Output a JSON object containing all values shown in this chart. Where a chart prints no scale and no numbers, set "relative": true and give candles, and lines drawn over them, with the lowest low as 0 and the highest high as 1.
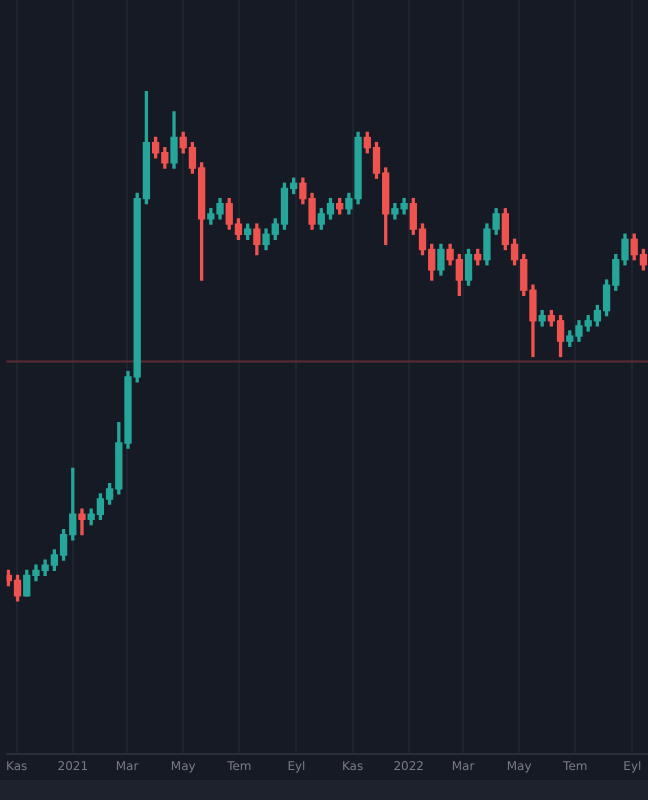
{
  "chart_data": {
    "type": "candlestick",
    "relative": true,
    "grid": "x",
    "legend": false,
    "x": [
      "2020-10-23",
      "2020-11-02",
      "2020-11-12",
      "2020-11-22",
      "2020-12-02",
      "2020-12-12",
      "2020-12-22",
      "2021-01-01",
      "2021-01-11",
      "2021-01-21",
      "2021-01-31",
      "2021-02-10",
      "2021-02-20",
      "2021-03-02",
      "2021-03-12",
      "2021-03-22",
      "2021-04-01",
      "2021-04-11",
      "2021-04-21",
      "2021-05-01",
      "2021-05-11",
      "2021-05-21",
      "2021-05-31",
      "2021-06-10",
      "2021-06-20",
      "2021-06-30",
      "2021-07-10",
      "2021-07-20",
      "2021-07-30",
      "2021-08-09",
      "2021-08-19",
      "2021-08-29",
      "2021-09-08",
      "2021-09-18",
      "2021-09-28",
      "2021-10-08",
      "2021-10-18",
      "2021-10-28",
      "2021-11-07",
      "2021-11-17",
      "2021-11-27",
      "2021-12-07",
      "2021-12-17",
      "2021-12-27",
      "2022-01-06",
      "2022-01-16",
      "2022-01-26",
      "2022-02-05",
      "2022-02-15",
      "2022-02-25",
      "2022-03-07",
      "2022-03-17",
      "2022-03-27",
      "2022-04-06",
      "2022-04-16",
      "2022-04-26",
      "2022-05-06",
      "2022-05-16",
      "2022-05-26",
      "2022-06-05",
      "2022-06-15",
      "2022-06-25",
      "2022-07-05",
      "2022-07-15",
      "2022-07-25",
      "2022-08-04",
      "2022-08-14",
      "2022-08-24",
      "2022-09-03",
      "2022-09-13"
    ],
    "ohlc": [
      [
        0.05,
        0.06,
        0.03,
        0.04
      ],
      [
        0.04,
        0.05,
        0.0,
        0.01
      ],
      [
        0.01,
        0.06,
        0.01,
        0.05
      ],
      [
        0.05,
        0.07,
        0.04,
        0.06
      ],
      [
        0.06,
        0.08,
        0.05,
        0.07
      ],
      [
        0.07,
        0.1,
        0.06,
        0.09
      ],
      [
        0.09,
        0.14,
        0.08,
        0.13
      ],
      [
        0.13,
        0.26,
        0.12,
        0.17
      ],
      [
        0.17,
        0.18,
        0.13,
        0.16
      ],
      [
        0.16,
        0.18,
        0.15,
        0.17
      ],
      [
        0.17,
        0.21,
        0.16,
        0.2
      ],
      [
        0.2,
        0.23,
        0.19,
        0.22
      ],
      [
        0.22,
        0.35,
        0.21,
        0.31
      ],
      [
        0.31,
        0.45,
        0.3,
        0.44
      ],
      [
        0.44,
        0.8,
        0.43,
        0.79
      ],
      [
        0.79,
        1.0,
        0.78,
        0.9
      ],
      [
        0.9,
        0.91,
        0.87,
        0.88
      ],
      [
        0.88,
        0.89,
        0.85,
        0.86
      ],
      [
        0.86,
        0.96,
        0.85,
        0.91
      ],
      [
        0.91,
        0.92,
        0.88,
        0.89
      ],
      [
        0.89,
        0.9,
        0.84,
        0.85
      ],
      [
        0.85,
        0.86,
        0.63,
        0.75
      ],
      [
        0.75,
        0.77,
        0.74,
        0.76
      ],
      [
        0.76,
        0.79,
        0.75,
        0.78
      ],
      [
        0.78,
        0.79,
        0.73,
        0.74
      ],
      [
        0.74,
        0.75,
        0.71,
        0.72
      ],
      [
        0.72,
        0.74,
        0.71,
        0.73
      ],
      [
        0.73,
        0.74,
        0.68,
        0.7
      ],
      [
        0.7,
        0.73,
        0.69,
        0.72
      ],
      [
        0.72,
        0.75,
        0.71,
        0.74
      ],
      [
        0.74,
        0.82,
        0.73,
        0.81
      ],
      [
        0.81,
        0.83,
        0.8,
        0.82
      ],
      [
        0.82,
        0.83,
        0.78,
        0.79
      ],
      [
        0.79,
        0.8,
        0.73,
        0.74
      ],
      [
        0.74,
        0.77,
        0.73,
        0.76
      ],
      [
        0.76,
        0.79,
        0.75,
        0.78
      ],
      [
        0.78,
        0.79,
        0.76,
        0.77
      ],
      [
        0.77,
        0.8,
        0.76,
        0.79
      ],
      [
        0.79,
        0.92,
        0.78,
        0.91
      ],
      [
        0.91,
        0.92,
        0.88,
        0.89
      ],
      [
        0.89,
        0.9,
        0.83,
        0.84
      ],
      [
        0.84,
        0.85,
        0.7,
        0.76
      ],
      [
        0.76,
        0.78,
        0.75,
        0.77
      ],
      [
        0.77,
        0.79,
        0.76,
        0.78
      ],
      [
        0.78,
        0.79,
        0.72,
        0.73
      ],
      [
        0.73,
        0.74,
        0.68,
        0.69
      ],
      [
        0.69,
        0.7,
        0.63,
        0.65
      ],
      [
        0.65,
        0.7,
        0.64,
        0.69
      ],
      [
        0.69,
        0.7,
        0.66,
        0.67
      ],
      [
        0.67,
        0.68,
        0.6,
        0.63
      ],
      [
        0.63,
        0.69,
        0.62,
        0.68
      ],
      [
        0.68,
        0.69,
        0.66,
        0.67
      ],
      [
        0.67,
        0.74,
        0.66,
        0.73
      ],
      [
        0.73,
        0.77,
        0.72,
        0.76
      ],
      [
        0.76,
        0.77,
        0.69,
        0.7
      ],
      [
        0.7,
        0.71,
        0.66,
        0.67
      ],
      [
        0.67,
        0.68,
        0.6,
        0.61
      ],
      [
        0.61,
        0.62,
        0.48,
        0.55
      ],
      [
        0.55,
        0.57,
        0.54,
        0.56
      ],
      [
        0.56,
        0.57,
        0.54,
        0.55
      ],
      [
        0.55,
        0.56,
        0.48,
        0.51
      ],
      [
        0.51,
        0.53,
        0.5,
        0.52
      ],
      [
        0.52,
        0.55,
        0.51,
        0.54
      ],
      [
        0.54,
        0.56,
        0.53,
        0.55
      ],
      [
        0.55,
        0.58,
        0.54,
        0.57
      ],
      [
        0.57,
        0.63,
        0.56,
        0.62
      ],
      [
        0.62,
        0.68,
        0.61,
        0.67
      ],
      [
        0.67,
        0.72,
        0.66,
        0.71
      ],
      [
        0.71,
        0.72,
        0.67,
        0.68
      ],
      [
        0.68,
        0.69,
        0.65,
        0.66
      ]
    ],
    "colors": [
      "#ef5350",
      "#ef5350",
      "#26a69a",
      "#26a69a",
      "#26a69a",
      "#26a69a",
      "#26a69a",
      "#26a69a",
      "#ef5350",
      "#26a69a",
      "#26a69a",
      "#26a69a",
      "#26a69a",
      "#26a69a",
      "#26a69a",
      "#26a69a",
      "#ef5350",
      "#ef5350",
      "#26a69a",
      "#ef5350",
      "#ef5350",
      "#ef5350",
      "#26a69a",
      "#26a69a",
      "#ef5350",
      "#ef5350",
      "#26a69a",
      "#ef5350",
      "#26a69a",
      "#26a69a",
      "#26a69a",
      "#26a69a",
      "#ef5350",
      "#ef5350",
      "#26a69a",
      "#26a69a",
      "#ef5350",
      "#26a69a",
      "#26a69a",
      "#ef5350",
      "#ef5350",
      "#ef5350",
      "#26a69a",
      "#26a69a",
      "#ef5350",
      "#ef5350",
      "#ef5350",
      "#26a69a",
      "#ef5350",
      "#ef5350",
      "#26a69a",
      "#ef5350",
      "#26a69a",
      "#26a69a",
      "#ef5350",
      "#ef5350",
      "#ef5350",
      "#ef5350",
      "#26a69a",
      "#ef5350",
      "#ef5350",
      "#26a69a",
      "#26a69a",
      "#26a69a",
      "#26a69a",
      "#26a69a",
      "#26a69a",
      "#26a69a",
      "#ef5350",
      "#ef5350"
    ],
    "xlim": [
      "2020-10-21",
      "2022-09-18"
    ],
    "xticks": [
      {
        "value": "2020-11-01",
        "label": "Kas"
      },
      {
        "value": "2021-01-01",
        "label": "2021"
      },
      {
        "value": "2021-03-01",
        "label": "Mar"
      },
      {
        "value": "2021-05-01",
        "label": "May"
      },
      {
        "value": "2021-07-01",
        "label": "Tem"
      },
      {
        "value": "2021-09-01",
        "label": "Eyl"
      },
      {
        "value": "2021-11-01",
        "label": "Kas"
      },
      {
        "value": "2022-01-01",
        "label": "2022"
      },
      {
        "value": "2022-03-01",
        "label": "Mar"
      },
      {
        "value": "2022-05-01",
        "label": "May"
      },
      {
        "value": "2022-07-01",
        "label": "Tem"
      },
      {
        "value": "2022-09-01",
        "label": "Eyl"
      }
    ],
    "ref_lines": [
      {
        "axis": "y",
        "value": 0.47,
        "color": "#5a2a35"
      }
    ]
  }
}
